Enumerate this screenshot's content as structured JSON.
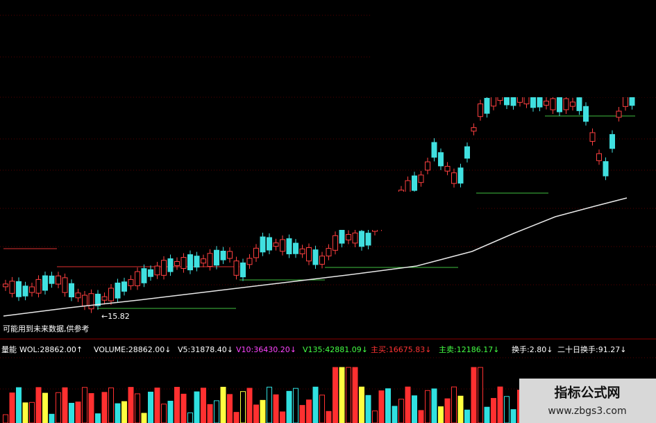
{
  "chart_area": {
    "price_marker": "←15.82",
    "warning": "可能用到未来数据,供参考"
  },
  "volume_header": {
    "title": "量能",
    "items": [
      {
        "text": "WOL:28862.00↑",
        "color": "#ffffff"
      },
      {
        "text": "VOLUME:28862.00↓",
        "color": "#ffffff"
      },
      {
        "text": "V5:31878.40↓",
        "color": "#ffffff"
      },
      {
        "text": "V10:36430.20↓",
        "color": "#ff44ff"
      },
      {
        "text": "V135:42881.09↓",
        "color": "#44ff44"
      },
      {
        "text": "主买:16675.83↓",
        "color": "#ff3333"
      },
      {
        "text": "主卖:12186.17↓",
        "color": "#44ff44"
      },
      {
        "text": "换手:2.80↓",
        "color": "#ffffff"
      },
      {
        "text": "二十日换手:91.27↓",
        "color": "#ffffff"
      }
    ]
  },
  "watermark": {
    "name": "指标公式网",
    "url": "www.zbgs3.com"
  }
}
